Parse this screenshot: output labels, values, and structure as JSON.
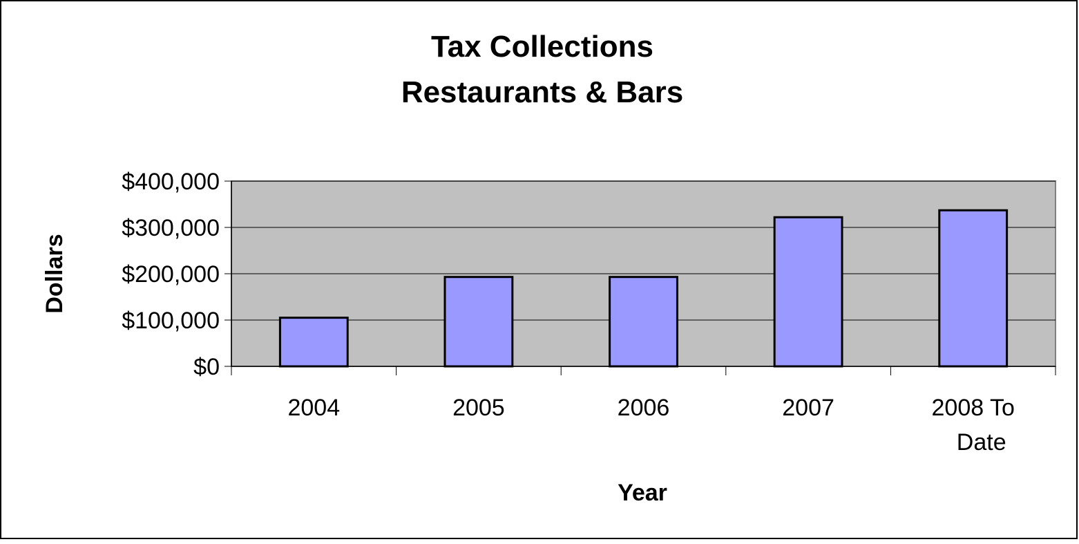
{
  "chart_data": {
    "type": "bar",
    "title_lines": [
      "Tax Collections",
      "Restaurants & Bars"
    ],
    "xlabel": "Year",
    "ylabel": "Dollars",
    "categories": [
      [
        "2004"
      ],
      [
        "2005"
      ],
      [
        "2006"
      ],
      [
        "2007"
      ],
      [
        "2008 To",
        "Date"
      ]
    ],
    "values": [
      105000,
      193000,
      193000,
      322000,
      337000
    ],
    "ylim": [
      0,
      400000
    ],
    "yticks": [
      0,
      100000,
      200000,
      300000,
      400000
    ],
    "ytick_labels": [
      "$0",
      "$100,000",
      "$200,000",
      "$300,000",
      "$400,000"
    ],
    "grid": true,
    "legend": "none",
    "colors": {
      "plot_background": "#c0c0c0",
      "bar_fill": "#9999ff",
      "bar_stroke": "#000000",
      "gridline": "#000000"
    }
  }
}
